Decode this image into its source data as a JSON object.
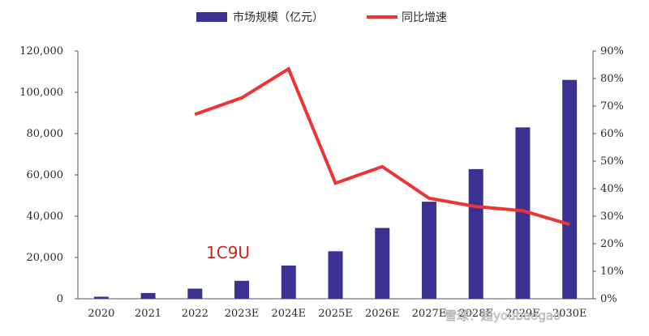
{
  "chart_data": {
    "type": "bar",
    "categories": [
      "2020",
      "2021",
      "2022",
      "2023E",
      "2024E",
      "2025E",
      "2026E",
      "2027E",
      "2028E",
      "2029E",
      "2030E"
    ],
    "series": [
      {
        "name": "市场规模（亿元）",
        "type": "bar",
        "axis": "left",
        "color": "#3b3192",
        "values": [
          1000,
          2800,
          4900,
          8700,
          16100,
          23000,
          34300,
          47000,
          62800,
          83000,
          106000
        ]
      },
      {
        "name": "同比增速",
        "type": "line",
        "axis": "right",
        "color": "#ee3333",
        "values": [
          null,
          null,
          0.67,
          0.73,
          0.835,
          0.42,
          0.48,
          0.365,
          0.335,
          0.32,
          0.27
        ]
      }
    ],
    "y_left": {
      "min": 0,
      "max": 120000,
      "step": 20000,
      "tick_labels": [
        "0",
        "20,000",
        "40,000",
        "60,000",
        "80,000",
        "100,000",
        "120,000"
      ]
    },
    "y_right": {
      "min": 0,
      "max": 0.9,
      "step": 0.1,
      "tick_labels": [
        "0%",
        "10%",
        "20%",
        "30%",
        "40%",
        "50%",
        "60%",
        "70%",
        "80%",
        "90%"
      ]
    },
    "legend_position": "top-center",
    "grid": false
  },
  "watermark": {
    "code": "1C9U",
    "site": "雪球：趋youbaogao"
  }
}
